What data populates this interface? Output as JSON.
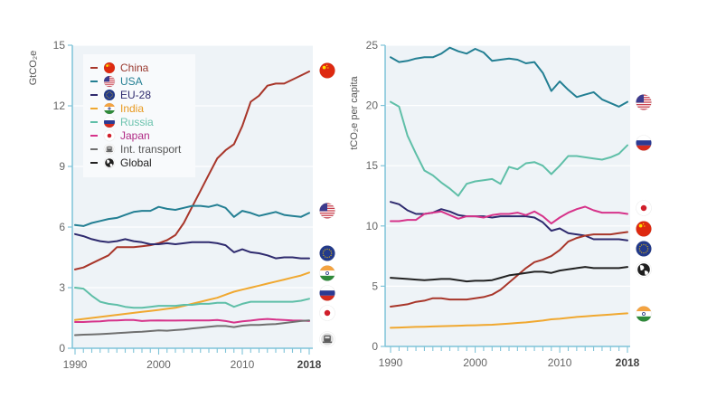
{
  "chart_data": [
    {
      "type": "line",
      "id": "total",
      "title": "",
      "xlabel": "",
      "ylabel": "GtCO₂e",
      "xlim": [
        1990,
        2018
      ],
      "ylim": [
        0,
        15
      ],
      "yticks": [
        0,
        3,
        6,
        9,
        12,
        15
      ],
      "xticks": [
        {
          "value": 1990,
          "label": "1990",
          "bold": false
        },
        {
          "value": 2000,
          "label": "2000",
          "bold": false
        },
        {
          "value": 2010,
          "label": "2010",
          "bold": false
        },
        {
          "value": 2018,
          "label": "2018",
          "bold": true
        }
      ],
      "grid": "horizontal",
      "legend_position": "top-left",
      "x": [
        1990,
        1991,
        1992,
        1993,
        1994,
        1995,
        1996,
        1997,
        1998,
        1999,
        2000,
        2001,
        2002,
        2003,
        2004,
        2005,
        2006,
        2007,
        2008,
        2009,
        2010,
        2011,
        2012,
        2013,
        2014,
        2015,
        2016,
        2017,
        2018
      ],
      "series": [
        {
          "name": "China",
          "key": "china",
          "color": "#a8362a",
          "values": [
            3.9,
            4.0,
            4.2,
            4.4,
            4.6,
            5.0,
            5.0,
            5.0,
            5.05,
            5.1,
            5.2,
            5.35,
            5.6,
            6.2,
            7.0,
            7.8,
            8.6,
            9.4,
            9.8,
            10.1,
            11.0,
            12.2,
            12.5,
            13.0,
            13.1,
            13.1,
            13.3,
            13.5,
            13.7
          ]
        },
        {
          "name": "USA",
          "key": "usa",
          "color": "#237f93",
          "values": [
            6.1,
            6.05,
            6.2,
            6.3,
            6.4,
            6.45,
            6.6,
            6.75,
            6.8,
            6.8,
            7.0,
            6.9,
            6.85,
            6.95,
            7.05,
            7.05,
            7.0,
            7.1,
            6.95,
            6.5,
            6.8,
            6.7,
            6.55,
            6.65,
            6.75,
            6.6,
            6.55,
            6.5,
            6.7
          ]
        },
        {
          "name": "EU-28",
          "key": "eu",
          "color": "#2e2a6e",
          "values": [
            5.65,
            5.55,
            5.4,
            5.3,
            5.25,
            5.3,
            5.4,
            5.3,
            5.25,
            5.15,
            5.15,
            5.2,
            5.15,
            5.2,
            5.25,
            5.25,
            5.25,
            5.2,
            5.1,
            4.75,
            4.9,
            4.75,
            4.7,
            4.6,
            4.45,
            4.5,
            4.5,
            4.45,
            4.45
          ]
        },
        {
          "name": "India",
          "key": "india",
          "color": "#f0a830",
          "values": [
            1.4,
            1.45,
            1.5,
            1.55,
            1.6,
            1.65,
            1.7,
            1.75,
            1.8,
            1.85,
            1.9,
            1.95,
            2.0,
            2.1,
            2.2,
            2.3,
            2.4,
            2.5,
            2.65,
            2.8,
            2.9,
            3.0,
            3.1,
            3.2,
            3.3,
            3.4,
            3.5,
            3.6,
            3.75
          ]
        },
        {
          "name": "Russia",
          "key": "russia",
          "color": "#5fbfa8",
          "values": [
            3.0,
            2.95,
            2.6,
            2.3,
            2.2,
            2.15,
            2.05,
            2.0,
            2.0,
            2.05,
            2.1,
            2.1,
            2.1,
            2.15,
            2.15,
            2.2,
            2.2,
            2.25,
            2.25,
            2.05,
            2.2,
            2.3,
            2.3,
            2.3,
            2.3,
            2.3,
            2.3,
            2.35,
            2.45
          ]
        },
        {
          "name": "Japan",
          "key": "japan",
          "color": "#d6338a",
          "values": [
            1.3,
            1.3,
            1.32,
            1.33,
            1.37,
            1.38,
            1.4,
            1.4,
            1.35,
            1.37,
            1.38,
            1.37,
            1.37,
            1.38,
            1.38,
            1.38,
            1.38,
            1.4,
            1.35,
            1.27,
            1.33,
            1.37,
            1.42,
            1.45,
            1.42,
            1.4,
            1.38,
            1.37,
            1.35
          ]
        },
        {
          "name": "Int. transport",
          "key": "transport",
          "color": "#707070",
          "values": [
            0.65,
            0.67,
            0.68,
            0.7,
            0.72,
            0.75,
            0.77,
            0.8,
            0.82,
            0.85,
            0.88,
            0.87,
            0.9,
            0.93,
            0.98,
            1.02,
            1.06,
            1.1,
            1.1,
            1.05,
            1.12,
            1.15,
            1.15,
            1.18,
            1.2,
            1.25,
            1.3,
            1.35,
            1.38
          ]
        }
      ],
      "end_markers": [
        "china",
        "usa",
        "eu",
        "india",
        "russia",
        "japan",
        "transport"
      ]
    },
    {
      "type": "line",
      "id": "per_capita",
      "title": "",
      "xlabel": "",
      "ylabel": "tCO₂e per capita",
      "xlim": [
        1990,
        2018
      ],
      "ylim": [
        0,
        25
      ],
      "yticks": [
        0,
        5,
        10,
        15,
        20,
        25
      ],
      "xticks": [
        {
          "value": 1990,
          "label": "1990",
          "bold": false
        },
        {
          "value": 2000,
          "label": "2000",
          "bold": false
        },
        {
          "value": 2010,
          "label": "2010",
          "bold": false
        },
        {
          "value": 2018,
          "label": "2018",
          "bold": true
        }
      ],
      "grid": "horizontal",
      "x": [
        1990,
        1991,
        1992,
        1993,
        1994,
        1995,
        1996,
        1997,
        1998,
        1999,
        2000,
        2001,
        2002,
        2003,
        2004,
        2005,
        2006,
        2007,
        2008,
        2009,
        2010,
        2011,
        2012,
        2013,
        2014,
        2015,
        2016,
        2017,
        2018
      ],
      "series": [
        {
          "name": "USA",
          "key": "usa",
          "color": "#237f93",
          "values": [
            24.0,
            23.6,
            23.7,
            23.9,
            24.0,
            24.0,
            24.3,
            24.8,
            24.5,
            24.3,
            24.7,
            24.4,
            23.7,
            23.8,
            23.9,
            23.8,
            23.5,
            23.6,
            22.7,
            21.2,
            22.0,
            21.3,
            20.7,
            20.9,
            21.1,
            20.5,
            20.2,
            19.9,
            20.3
          ]
        },
        {
          "name": "Russia",
          "key": "russia",
          "color": "#5fbfa8",
          "values": [
            20.3,
            19.9,
            17.5,
            16.0,
            14.6,
            14.2,
            13.6,
            13.1,
            12.5,
            13.5,
            13.7,
            13.8,
            13.9,
            13.5,
            14.9,
            14.7,
            15.2,
            15.3,
            15.0,
            14.3,
            15.0,
            15.8,
            15.8,
            15.7,
            15.6,
            15.5,
            15.7,
            16.0,
            16.7
          ]
        },
        {
          "name": "EU-28",
          "key": "eu",
          "color": "#2e2a6e",
          "values": [
            12.0,
            11.8,
            11.3,
            11.0,
            11.0,
            11.1,
            11.4,
            11.2,
            10.9,
            10.8,
            10.8,
            10.8,
            10.7,
            10.8,
            10.8,
            10.8,
            10.8,
            10.7,
            10.3,
            9.6,
            9.8,
            9.4,
            9.3,
            9.2,
            8.9,
            8.9,
            8.9,
            8.9,
            8.8
          ]
        },
        {
          "name": "Japan",
          "key": "japan",
          "color": "#d6338a",
          "values": [
            10.4,
            10.4,
            10.5,
            10.5,
            11.0,
            11.1,
            11.2,
            10.9,
            10.6,
            10.8,
            10.8,
            10.7,
            10.9,
            11.0,
            11.0,
            11.1,
            10.9,
            11.2,
            10.8,
            10.2,
            10.7,
            11.1,
            11.4,
            11.6,
            11.3,
            11.1,
            11.1,
            11.1,
            11.0
          ]
        },
        {
          "name": "China",
          "key": "china",
          "color": "#a8362a",
          "values": [
            3.3,
            3.4,
            3.5,
            3.7,
            3.8,
            4.0,
            4.0,
            3.9,
            3.9,
            3.9,
            4.0,
            4.1,
            4.3,
            4.7,
            5.3,
            5.9,
            6.5,
            7.0,
            7.2,
            7.5,
            8.0,
            8.7,
            9.0,
            9.2,
            9.3,
            9.3,
            9.3,
            9.4,
            9.5
          ]
        },
        {
          "name": "Global",
          "key": "global",
          "color": "#222222",
          "values": [
            5.7,
            5.65,
            5.6,
            5.55,
            5.5,
            5.55,
            5.6,
            5.6,
            5.5,
            5.4,
            5.45,
            5.45,
            5.5,
            5.7,
            5.9,
            6.0,
            6.1,
            6.2,
            6.2,
            6.1,
            6.3,
            6.4,
            6.5,
            6.6,
            6.5,
            6.5,
            6.5,
            6.5,
            6.6
          ]
        },
        {
          "name": "India",
          "key": "india",
          "color": "#f0a830",
          "values": [
            1.55,
            1.57,
            1.6,
            1.62,
            1.64,
            1.66,
            1.68,
            1.7,
            1.72,
            1.74,
            1.76,
            1.78,
            1.8,
            1.85,
            1.9,
            1.95,
            2.0,
            2.07,
            2.15,
            2.25,
            2.3,
            2.37,
            2.45,
            2.5,
            2.55,
            2.6,
            2.65,
            2.7,
            2.75
          ]
        }
      ],
      "end_markers": [
        "usa",
        "russia",
        "japan",
        "china",
        "eu",
        "global",
        "india"
      ]
    }
  ],
  "legend": [
    {
      "label": "China",
      "key": "china",
      "line_color": "#a8362a",
      "text_color": "#9a3a30",
      "icon": "china-flag-icon"
    },
    {
      "label": "USA",
      "key": "usa",
      "line_color": "#237f93",
      "text_color": "#237f93",
      "icon": "usa-flag-icon"
    },
    {
      "label": "EU-28",
      "key": "eu",
      "line_color": "#2e2a6e",
      "text_color": "#2e2a6e",
      "icon": "eu-flag-icon"
    },
    {
      "label": "India",
      "key": "india",
      "line_color": "#f0a830",
      "text_color": "#e89a20",
      "icon": "india-flag-icon"
    },
    {
      "label": "Russia",
      "key": "russia",
      "line_color": "#5fbfa8",
      "text_color": "#6cc3ae",
      "icon": "russia-flag-icon"
    },
    {
      "label": "Japan",
      "key": "japan",
      "line_color": "#d6338a",
      "text_color": "#b02a85",
      "icon": "japan-flag-icon"
    },
    {
      "label": "Int. transport",
      "key": "transport",
      "line_color": "#707070",
      "text_color": "#555555",
      "icon": "ship-icon"
    },
    {
      "label": "Global",
      "key": "global",
      "line_color": "#222222",
      "text_color": "#222222",
      "icon": "globe-icon"
    }
  ]
}
